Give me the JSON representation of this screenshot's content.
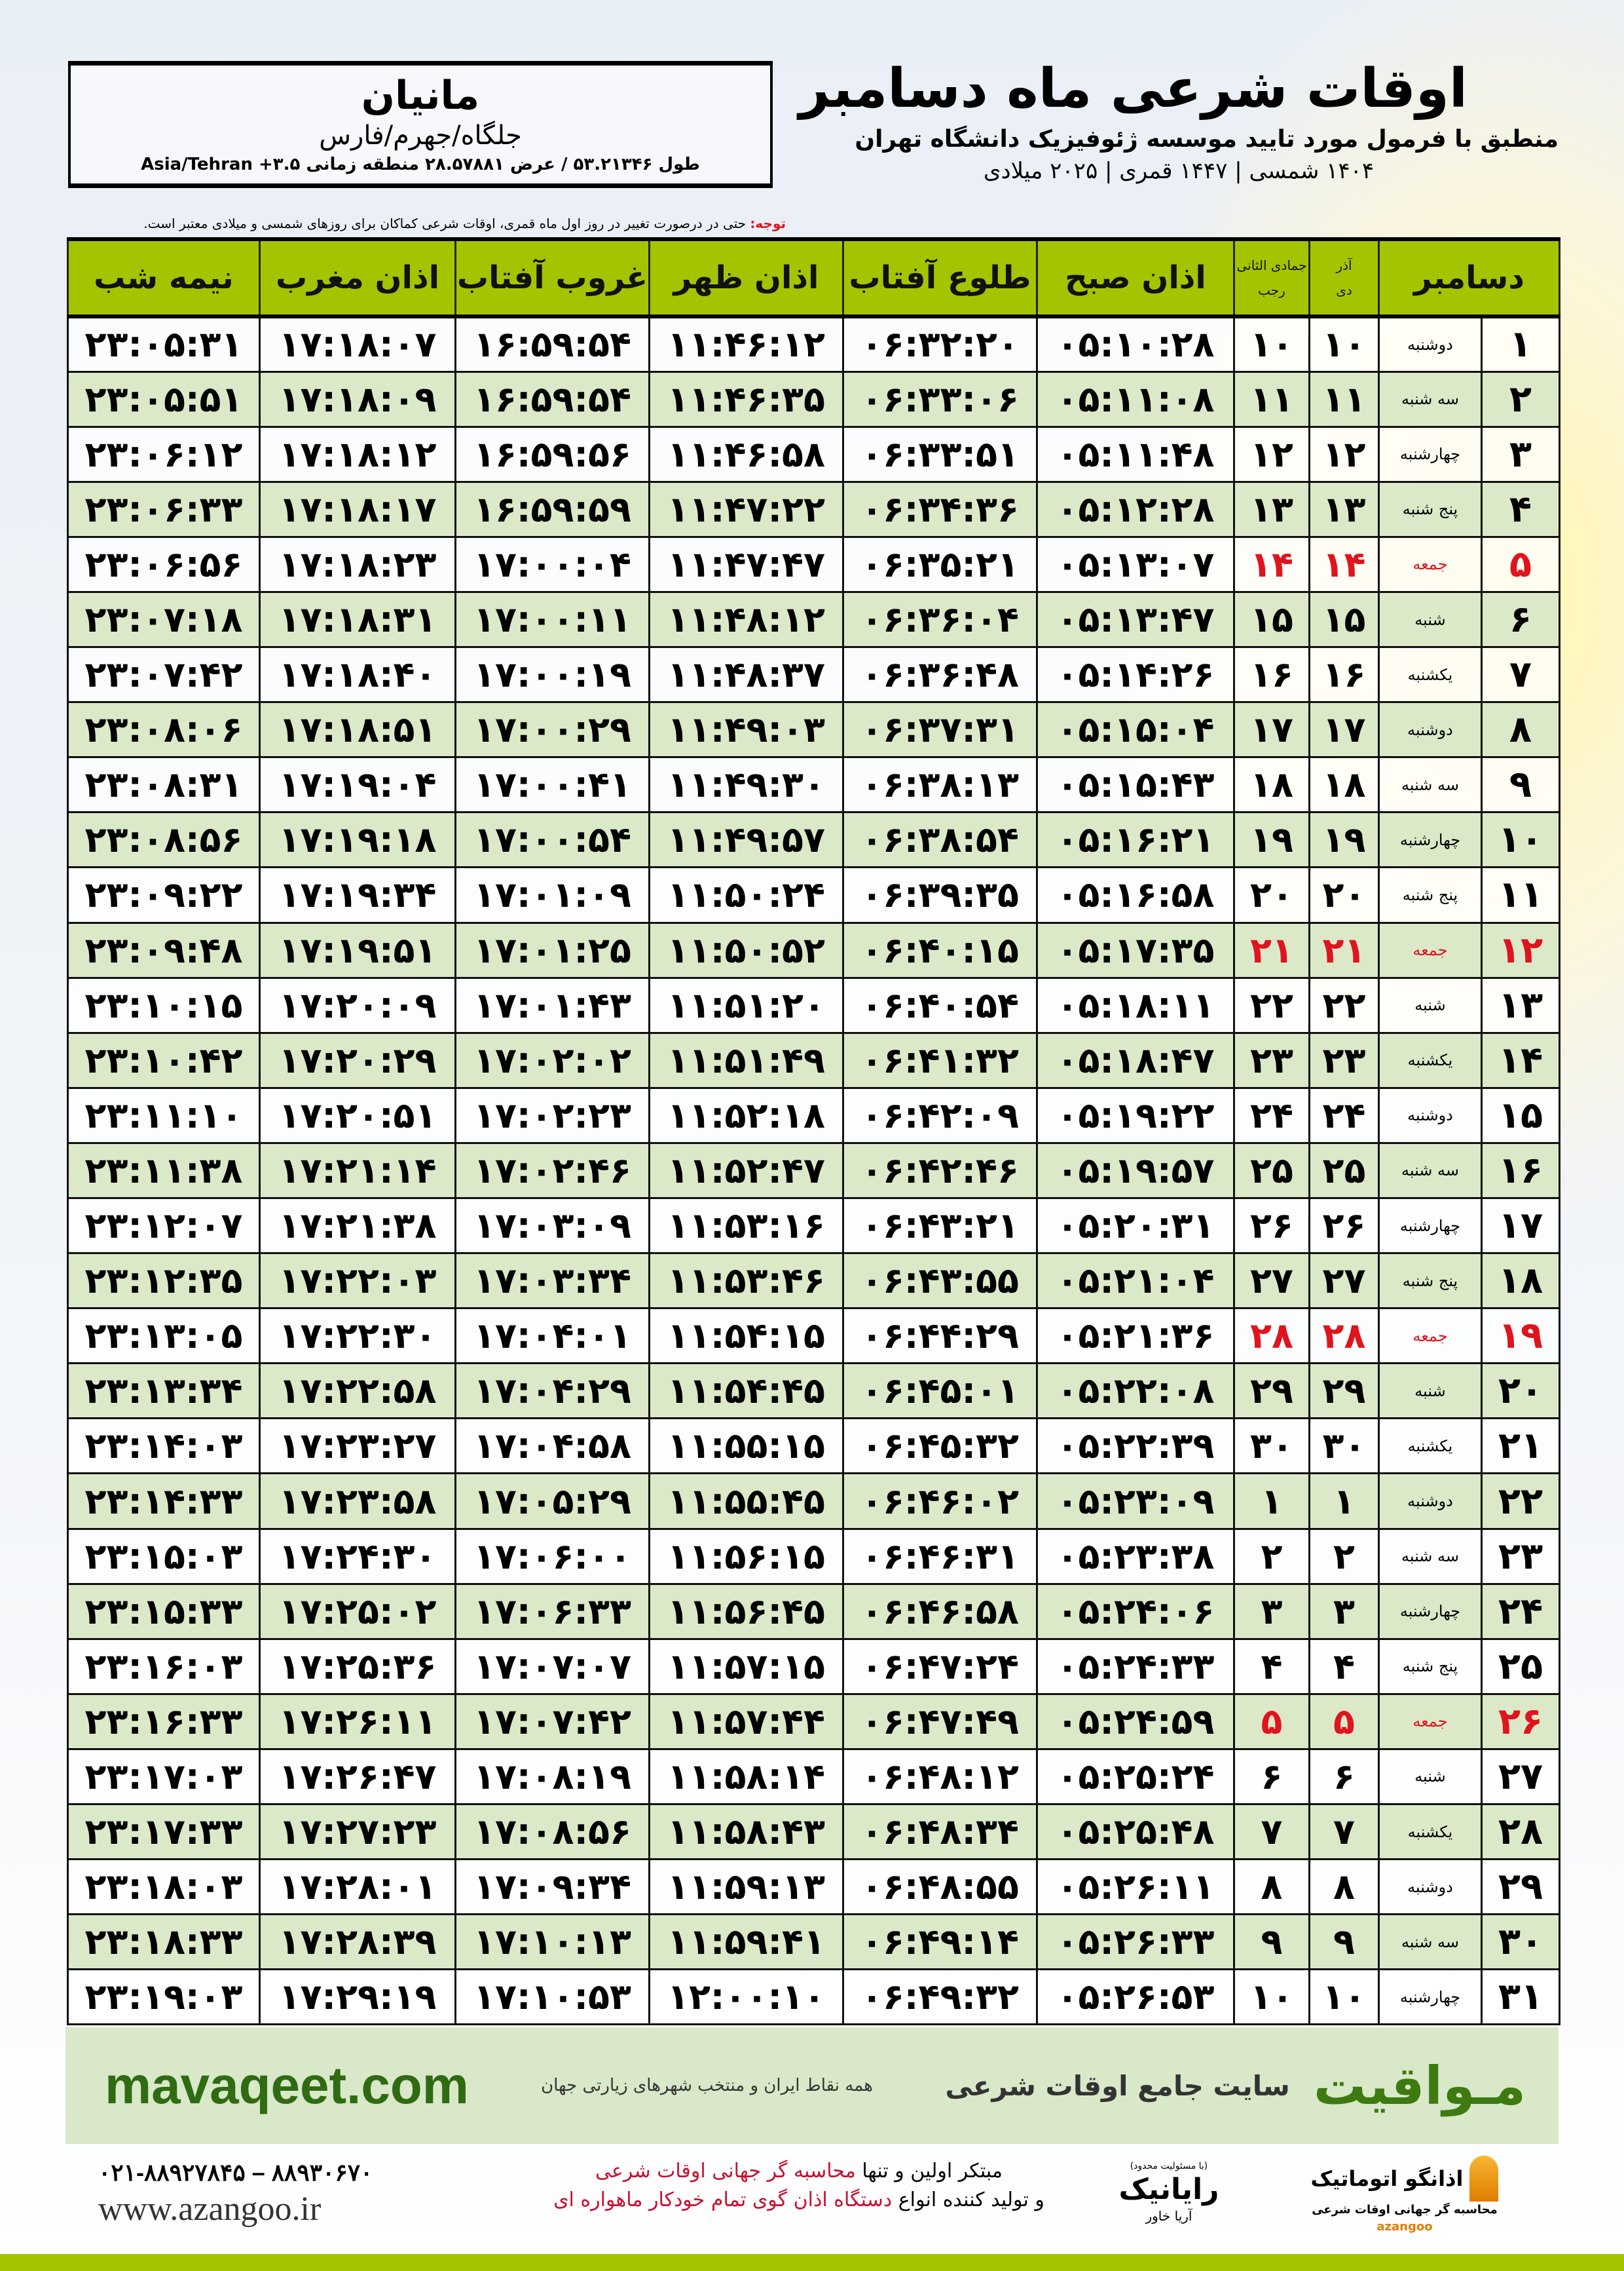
{
  "location": {
    "name": "مانیان",
    "path": "جلگاه/جهرم/فارس",
    "coords": "طول ۵۳.۲۱۳۴۶ / عرض ۲۸.۵۷۸۸۱ منطقه زمانی ۳.۵+ Asia/Tehran"
  },
  "header": {
    "title": "اوقات شرعی ماه دسامبر",
    "subtitle": "منطبق با فرمول مورد تایید موسسه ژئوفیزیک دانشگاه تهران",
    "dateline": "۱۴۰۴ شمسی | ۱۴۴۷ قمری | ۲۰۲۵ میلادی"
  },
  "note": {
    "label": "توجه:",
    "text": " حتی در درصورت تغییر در روز اول ماه قمری، اوقات شرعی کماکان برای روزهای شمسی و میلادی معتبر است."
  },
  "table": {
    "columns": {
      "day": "دسامبر",
      "azar": "آذر",
      "dey": "دی",
      "jumada": "جمادی الثانی",
      "rajab": "رجب",
      "fajr": "اذان صبح",
      "sunrise": "طلوع آفتاب",
      "dhuhr": "اذان ظهر",
      "sunset": "غروب آفتاب",
      "maghrib": "اذان مغرب",
      "midnight": "نیمه شب"
    },
    "friday_color": "#e0141e",
    "header_color": "#a5c400",
    "rows": [
      [
        "۱",
        "دوشنبه",
        "۱۰",
        "۱۰",
        "۰۵:۱۰:۲۸",
        "۰۶:۳۲:۲۰",
        "۱۱:۴۶:۱۲",
        "۱۶:۵۹:۵۴",
        "۱۷:۱۸:۰۷",
        "۲۳:۰۵:۳۱"
      ],
      [
        "۲",
        "سه شنبه",
        "۱۱",
        "۱۱",
        "۰۵:۱۱:۰۸",
        "۰۶:۳۳:۰۶",
        "۱۱:۴۶:۳۵",
        "۱۶:۵۹:۵۴",
        "۱۷:۱۸:۰۹",
        "۲۳:۰۵:۵۱"
      ],
      [
        "۳",
        "چهارشنبه",
        "۱۲",
        "۱۲",
        "۰۵:۱۱:۴۸",
        "۰۶:۳۳:۵۱",
        "۱۱:۴۶:۵۸",
        "۱۶:۵۹:۵۶",
        "۱۷:۱۸:۱۲",
        "۲۳:۰۶:۱۲"
      ],
      [
        "۴",
        "پنج شنبه",
        "۱۳",
        "۱۳",
        "۰۵:۱۲:۲۸",
        "۰۶:۳۴:۳۶",
        "۱۱:۴۷:۲۲",
        "۱۶:۵۹:۵۹",
        "۱۷:۱۸:۱۷",
        "۲۳:۰۶:۳۳"
      ],
      [
        "۵",
        "جمعه",
        "۱۴",
        "۱۴",
        "۰۵:۱۳:۰۷",
        "۰۶:۳۵:۲۱",
        "۱۱:۴۷:۴۷",
        "۱۷:۰۰:۰۴",
        "۱۷:۱۸:۲۳",
        "۲۳:۰۶:۵۶"
      ],
      [
        "۶",
        "شنبه",
        "۱۵",
        "۱۵",
        "۰۵:۱۳:۴۷",
        "۰۶:۳۶:۰۴",
        "۱۱:۴۸:۱۲",
        "۱۷:۰۰:۱۱",
        "۱۷:۱۸:۳۱",
        "۲۳:۰۷:۱۸"
      ],
      [
        "۷",
        "یکشنبه",
        "۱۶",
        "۱۶",
        "۰۵:۱۴:۲۶",
        "۰۶:۳۶:۴۸",
        "۱۱:۴۸:۳۷",
        "۱۷:۰۰:۱۹",
        "۱۷:۱۸:۴۰",
        "۲۳:۰۷:۴۲"
      ],
      [
        "۸",
        "دوشنبه",
        "۱۷",
        "۱۷",
        "۰۵:۱۵:۰۴",
        "۰۶:۳۷:۳۱",
        "۱۱:۴۹:۰۳",
        "۱۷:۰۰:۲۹",
        "۱۷:۱۸:۵۱",
        "۲۳:۰۸:۰۶"
      ],
      [
        "۹",
        "سه شنبه",
        "۱۸",
        "۱۸",
        "۰۵:۱۵:۴۳",
        "۰۶:۳۸:۱۳",
        "۱۱:۴۹:۳۰",
        "۱۷:۰۰:۴۱",
        "۱۷:۱۹:۰۴",
        "۲۳:۰۸:۳۱"
      ],
      [
        "۱۰",
        "چهارشنبه",
        "۱۹",
        "۱۹",
        "۰۵:۱۶:۲۱",
        "۰۶:۳۸:۵۴",
        "۱۱:۴۹:۵۷",
        "۱۷:۰۰:۵۴",
        "۱۷:۱۹:۱۸",
        "۲۳:۰۸:۵۶"
      ],
      [
        "۱۱",
        "پنج شنبه",
        "۲۰",
        "۲۰",
        "۰۵:۱۶:۵۸",
        "۰۶:۳۹:۳۵",
        "۱۱:۵۰:۲۴",
        "۱۷:۰۱:۰۹",
        "۱۷:۱۹:۳۴",
        "۲۳:۰۹:۲۲"
      ],
      [
        "۱۲",
        "جمعه",
        "۲۱",
        "۲۱",
        "۰۵:۱۷:۳۵",
        "۰۶:۴۰:۱۵",
        "۱۱:۵۰:۵۲",
        "۱۷:۰۱:۲۵",
        "۱۷:۱۹:۵۱",
        "۲۳:۰۹:۴۸"
      ],
      [
        "۱۳",
        "شنبه",
        "۲۲",
        "۲۲",
        "۰۵:۱۸:۱۱",
        "۰۶:۴۰:۵۴",
        "۱۱:۵۱:۲۰",
        "۱۷:۰۱:۴۳",
        "۱۷:۲۰:۰۹",
        "۲۳:۱۰:۱۵"
      ],
      [
        "۱۴",
        "یکشنبه",
        "۲۳",
        "۲۳",
        "۰۵:۱۸:۴۷",
        "۰۶:۴۱:۳۲",
        "۱۱:۵۱:۴۹",
        "۱۷:۰۲:۰۲",
        "۱۷:۲۰:۲۹",
        "۲۳:۱۰:۴۲"
      ],
      [
        "۱۵",
        "دوشنبه",
        "۲۴",
        "۲۴",
        "۰۵:۱۹:۲۲",
        "۰۶:۴۲:۰۹",
        "۱۱:۵۲:۱۸",
        "۱۷:۰۲:۲۳",
        "۱۷:۲۰:۵۱",
        "۲۳:۱۱:۱۰"
      ],
      [
        "۱۶",
        "سه شنبه",
        "۲۵",
        "۲۵",
        "۰۵:۱۹:۵۷",
        "۰۶:۴۲:۴۶",
        "۱۱:۵۲:۴۷",
        "۱۷:۰۲:۴۶",
        "۱۷:۲۱:۱۴",
        "۲۳:۱۱:۳۸"
      ],
      [
        "۱۷",
        "چهارشنبه",
        "۲۶",
        "۲۶",
        "۰۵:۲۰:۳۱",
        "۰۶:۴۳:۲۱",
        "۱۱:۵۳:۱۶",
        "۱۷:۰۳:۰۹",
        "۱۷:۲۱:۳۸",
        "۲۳:۱۲:۰۷"
      ],
      [
        "۱۸",
        "پنج شنبه",
        "۲۷",
        "۲۷",
        "۰۵:۲۱:۰۴",
        "۰۶:۴۳:۵۵",
        "۱۱:۵۳:۴۶",
        "۱۷:۰۳:۳۴",
        "۱۷:۲۲:۰۳",
        "۲۳:۱۲:۳۵"
      ],
      [
        "۱۹",
        "جمعه",
        "۲۸",
        "۲۸",
        "۰۵:۲۱:۳۶",
        "۰۶:۴۴:۲۹",
        "۱۱:۵۴:۱۵",
        "۱۷:۰۴:۰۱",
        "۱۷:۲۲:۳۰",
        "۲۳:۱۳:۰۵"
      ],
      [
        "۲۰",
        "شنبه",
        "۲۹",
        "۲۹",
        "۰۵:۲۲:۰۸",
        "۰۶:۴۵:۰۱",
        "۱۱:۵۴:۴۵",
        "۱۷:۰۴:۲۹",
        "۱۷:۲۲:۵۸",
        "۲۳:۱۳:۳۴"
      ],
      [
        "۲۱",
        "یکشنبه",
        "۳۰",
        "۳۰",
        "۰۵:۲۲:۳۹",
        "۰۶:۴۵:۳۲",
        "۱۱:۵۵:۱۵",
        "۱۷:۰۴:۵۸",
        "۱۷:۲۳:۲۷",
        "۲۳:۱۴:۰۳"
      ],
      [
        "۲۲",
        "دوشنبه",
        "۱",
        "۱",
        "۰۵:۲۳:۰۹",
        "۰۶:۴۶:۰۲",
        "۱۱:۵۵:۴۵",
        "۱۷:۰۵:۲۹",
        "۱۷:۲۳:۵۸",
        "۲۳:۱۴:۳۳"
      ],
      [
        "۲۳",
        "سه شنبه",
        "۲",
        "۲",
        "۰۵:۲۳:۳۸",
        "۰۶:۴۶:۳۱",
        "۱۱:۵۶:۱۵",
        "۱۷:۰۶:۰۰",
        "۱۷:۲۴:۳۰",
        "۲۳:۱۵:۰۳"
      ],
      [
        "۲۴",
        "چهارشنبه",
        "۳",
        "۳",
        "۰۵:۲۴:۰۶",
        "۰۶:۴۶:۵۸",
        "۱۱:۵۶:۴۵",
        "۱۷:۰۶:۳۳",
        "۱۷:۲۵:۰۲",
        "۲۳:۱۵:۳۳"
      ],
      [
        "۲۵",
        "پنج شنبه",
        "۴",
        "۴",
        "۰۵:۲۴:۳۳",
        "۰۶:۴۷:۲۴",
        "۱۱:۵۷:۱۵",
        "۱۷:۰۷:۰۷",
        "۱۷:۲۵:۳۶",
        "۲۳:۱۶:۰۳"
      ],
      [
        "۲۶",
        "جمعه",
        "۵",
        "۵",
        "۰۵:۲۴:۵۹",
        "۰۶:۴۷:۴۹",
        "۱۱:۵۷:۴۴",
        "۱۷:۰۷:۴۲",
        "۱۷:۲۶:۱۱",
        "۲۳:۱۶:۳۳"
      ],
      [
        "۲۷",
        "شنبه",
        "۶",
        "۶",
        "۰۵:۲۵:۲۴",
        "۰۶:۴۸:۱۲",
        "۱۱:۵۸:۱۴",
        "۱۷:۰۸:۱۹",
        "۱۷:۲۶:۴۷",
        "۲۳:۱۷:۰۳"
      ],
      [
        "۲۸",
        "یکشنبه",
        "۷",
        "۷",
        "۰۵:۲۵:۴۸",
        "۰۶:۴۸:۳۴",
        "۱۱:۵۸:۴۳",
        "۱۷:۰۸:۵۶",
        "۱۷:۲۷:۲۳",
        "۲۳:۱۷:۳۳"
      ],
      [
        "۲۹",
        "دوشنبه",
        "۸",
        "۸",
        "۰۵:۲۶:۱۱",
        "۰۶:۴۸:۵۵",
        "۱۱:۵۹:۱۳",
        "۱۷:۰۹:۳۴",
        "۱۷:۲۸:۰۱",
        "۲۳:۱۸:۰۳"
      ],
      [
        "۳۰",
        "سه شنبه",
        "۹",
        "۹",
        "۰۵:۲۶:۳۳",
        "۰۶:۴۹:۱۴",
        "۱۱:۵۹:۴۱",
        "۱۷:۱۰:۱۳",
        "۱۷:۲۸:۳۹",
        "۲۳:۱۸:۳۳"
      ],
      [
        "۳۱",
        "چهارشنبه",
        "۱۰",
        "۱۰",
        "۰۵:۲۶:۵۳",
        "۰۶:۴۹:۳۲",
        "۱۲:۰۰:۱۰",
        "۱۷:۱۰:۵۳",
        "۱۷:۲۹:۱۹",
        "۲۳:۱۹:۰۳"
      ]
    ]
  },
  "footer": {
    "mavaqeet_logo": "مـواقیت",
    "mavaqeet_desc": "سایت جامع اوقات شرعی",
    "mavaqeet_tagline": "همه نقاط ایران و منتخب شهرهای زیارتی جهان",
    "mavaqeet_url": "mavaqeet.com",
    "phone": "۰۲۱-۸۸۹۲۷۸۴۵ – ۸۸۹۳۰۶۷۰",
    "azangoo_url": "www.azangoo.ir",
    "promo_line1_a": "مبتکر اولین و تنها ",
    "promo_line1_b": "محاسبه گر جهانی اوقات شرعی",
    "promo_line2_a": "و تولید کننده انواع ",
    "promo_line2_b": "دستگاه اذان گوی تمام خودکار ماهواره ای",
    "rayanik_small": "(با مسئولیت محدود)",
    "rayanik_name": "رایانیک",
    "rayanik_sub": "آریا خاور",
    "azangoo_name": "اذانگو اتوماتیک",
    "azangoo_sub": "محاسبه گر جهانی اوقات شرعی",
    "azangoo_brand": "azangoo"
  }
}
